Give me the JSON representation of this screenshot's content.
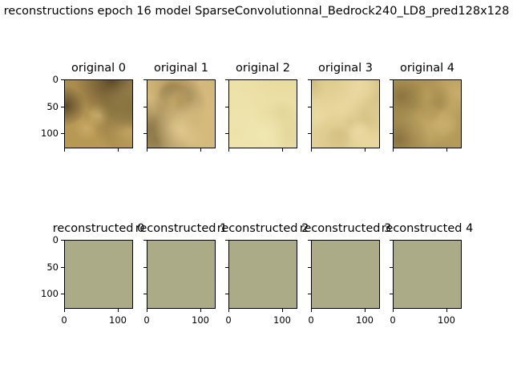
{
  "figure": {
    "suptitle": "reconstructions epoch 16 model SparseConvolutionnal_Bedrock240_LD8_pred128x128"
  },
  "chart_data": {
    "type": "image-grid",
    "rows": [
      {
        "name": "original",
        "panels": [
          {
            "title": "original 0",
            "palette": [
              "#a98c4e",
              "#8a7541",
              "#c9a964",
              "#5f4c2a",
              "#d2b673",
              "#b89a55"
            ]
          },
          {
            "title": "original 1",
            "palette": [
              "#d2b77a",
              "#b59a5e",
              "#e2ca8e",
              "#8f7a4b",
              "#c8ad6d",
              "#dcc284"
            ]
          },
          {
            "title": "original 2",
            "palette": [
              "#e8dca0",
              "#e0d295",
              "#ede2aa",
              "#d9cb8c",
              "#e4d79c",
              "#f0e6b0"
            ]
          },
          {
            "title": "original 3",
            "palette": [
              "#e2d196",
              "#d8c487",
              "#ead9a2",
              "#ccb677",
              "#dfcc8f",
              "#e8d69c"
            ]
          },
          {
            "title": "original 4",
            "palette": [
              "#b69c5b",
              "#9f854a",
              "#c8ad6b",
              "#8a7440",
              "#bca263",
              "#a89050"
            ]
          }
        ],
        "x_axis": {
          "ticks": [
            0,
            100
          ],
          "labels_shown": false
        },
        "y_axis": {
          "ticks": [
            0,
            50,
            100
          ],
          "labels_shown_on": "first"
        },
        "image_size": 128
      },
      {
        "name": "reconstructed",
        "panels": [
          {
            "title": "reconstructed 0",
            "color": "#abab88"
          },
          {
            "title": "reconstructed 1",
            "color": "#abab88"
          },
          {
            "title": "reconstructed 2",
            "color": "#abab88"
          },
          {
            "title": "reconstructed 3",
            "color": "#abab88"
          },
          {
            "title": "reconstructed 4",
            "color": "#abab88"
          }
        ],
        "x_axis": {
          "ticks": [
            0,
            100
          ],
          "labels_shown": true
        },
        "y_axis": {
          "ticks": [
            0,
            50,
            100
          ],
          "labels_shown_on": "first"
        },
        "image_size": 128
      }
    ]
  }
}
